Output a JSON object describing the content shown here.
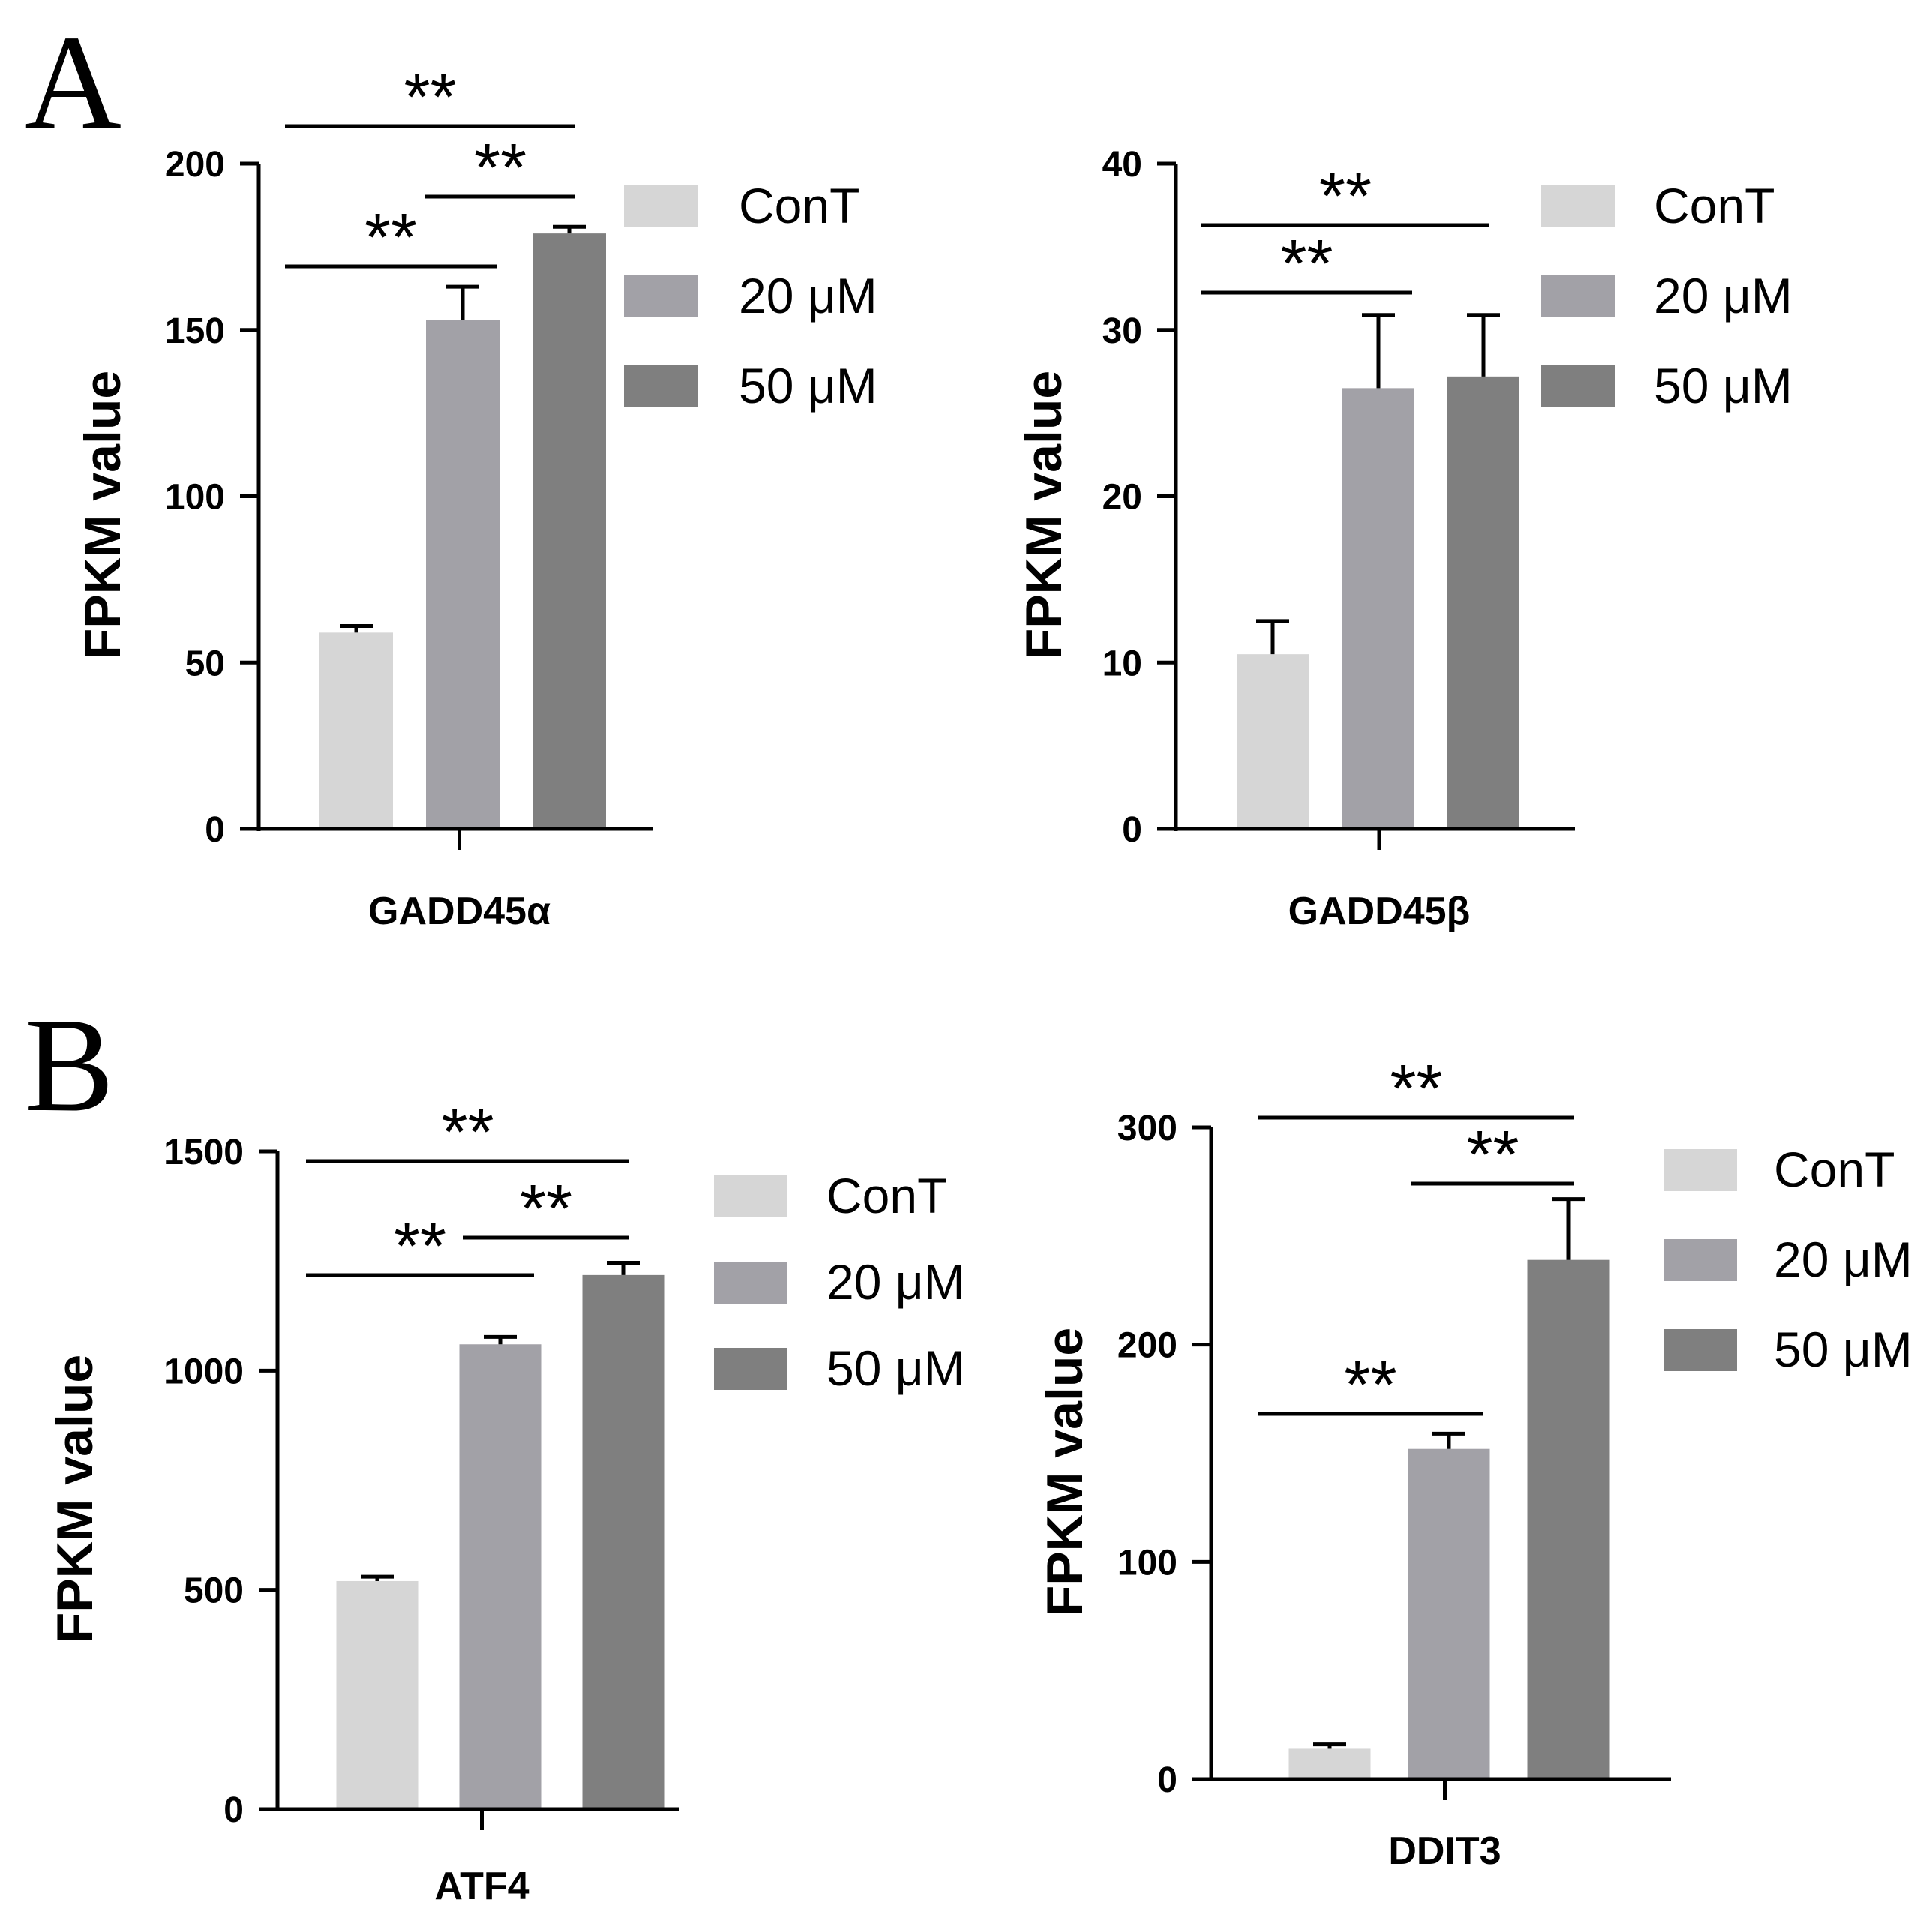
{
  "panel_labels": [
    "A",
    "B"
  ],
  "colors": {
    "ConT": "#d6d6d6",
    "20 μM": "#a2a1a7",
    "50 μM": "#7f7f7f",
    "axis": "#000000"
  },
  "chart_data": [
    {
      "type": "bar",
      "panel": "A",
      "category": "GADD45α",
      "ylabel": "FPKM value",
      "ylim": [
        0,
        200
      ],
      "yticks": [
        0,
        50,
        100,
        150,
        200
      ],
      "series": [
        {
          "name": "ConT",
          "value": 59,
          "error": 2
        },
        {
          "name": "20 μM",
          "value": 153,
          "error": 10
        },
        {
          "name": "50 μM",
          "value": 179,
          "error": 2
        }
      ],
      "significance": [
        {
          "from": 0,
          "to": 2,
          "label": "**"
        },
        {
          "from": 1,
          "to": 2,
          "label": "**"
        },
        {
          "from": 0,
          "to": 1,
          "label": "**"
        }
      ]
    },
    {
      "type": "bar",
      "panel": "A",
      "category": "GADD45β",
      "ylabel": "FPKM value",
      "ylim": [
        0,
        40
      ],
      "yticks": [
        0,
        10,
        20,
        30,
        40
      ],
      "series": [
        {
          "name": "ConT",
          "value": 10.5,
          "error": 2
        },
        {
          "name": "20 μM",
          "value": 26.5,
          "error": 4.4
        },
        {
          "name": "50 μM",
          "value": 27.2,
          "error": 3.7
        }
      ],
      "significance": [
        {
          "from": 0,
          "to": 2,
          "label": "**"
        },
        {
          "from": 0,
          "to": 1,
          "label": "**"
        }
      ]
    },
    {
      "type": "bar",
      "panel": "B",
      "category": "ATF4",
      "ylabel": "FPKM value",
      "ylim": [
        0,
        1500
      ],
      "yticks": [
        0,
        500,
        1000,
        1500
      ],
      "series": [
        {
          "name": "ConT",
          "value": 520,
          "error": 10
        },
        {
          "name": "20 μM",
          "value": 1060,
          "error": 17
        },
        {
          "name": "50 μM",
          "value": 1218,
          "error": 28
        }
      ],
      "significance": [
        {
          "from": 0,
          "to": 2,
          "label": "**"
        },
        {
          "from": 1,
          "to": 2,
          "label": "**"
        },
        {
          "from": 0,
          "to": 1,
          "label": "**"
        }
      ]
    },
    {
      "type": "bar",
      "panel": "B",
      "category": "DDIT3",
      "ylabel": "FPKM value",
      "ylim": [
        0,
        300
      ],
      "yticks": [
        0,
        100,
        200,
        300
      ],
      "series": [
        {
          "name": "ConT",
          "value": 14,
          "error": 2
        },
        {
          "name": "20 μM",
          "value": 152,
          "error": 7
        },
        {
          "name": "50 μM",
          "value": 239,
          "error": 28
        }
      ],
      "significance": [
        {
          "from": 0,
          "to": 2,
          "label": "**"
        },
        {
          "from": 1,
          "to": 2,
          "label": "**"
        },
        {
          "from": 0,
          "to": 1,
          "label": "**"
        }
      ]
    }
  ]
}
